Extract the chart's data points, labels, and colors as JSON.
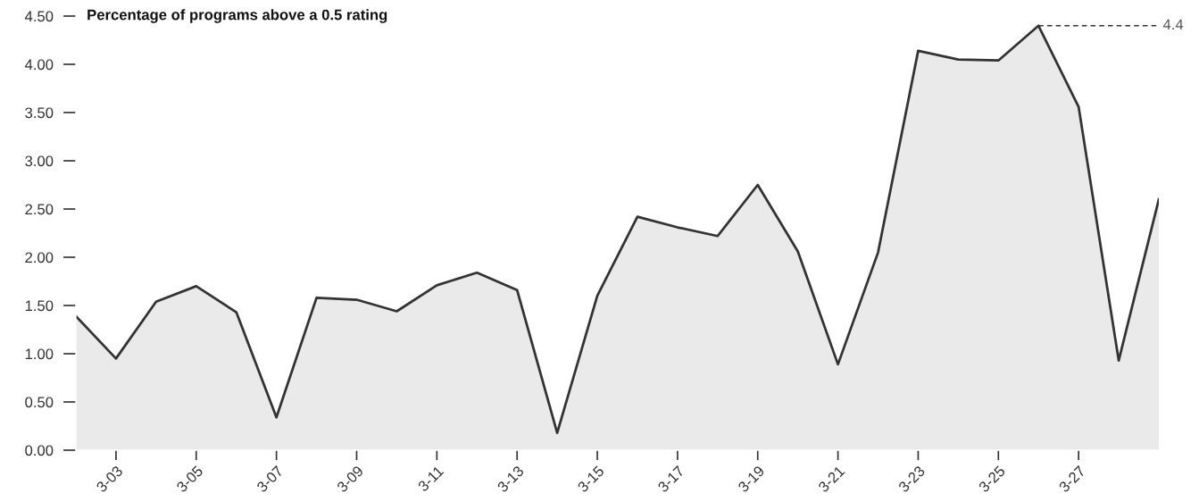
{
  "chart_data": {
    "type": "area",
    "title": "Percentage of programs above a 0.5 rating",
    "categories": [
      null,
      "3-03",
      null,
      "3-05",
      null,
      "3-07",
      null,
      "3-09",
      null,
      "3-11",
      null,
      "3-13",
      null,
      "3-15",
      null,
      "3-17",
      null,
      "3-19",
      null,
      "3-21",
      null,
      "3-23",
      null,
      "3-25",
      null,
      "3-27",
      null,
      null
    ],
    "series": [
      {
        "color": "#333333",
        "values": [
          1.39,
          0.95,
          1.54,
          1.7,
          1.43,
          0.34,
          1.58,
          1.56,
          1.44,
          1.71,
          1.84,
          1.66,
          0.18,
          1.6,
          2.42,
          2.31,
          2.22,
          2.75,
          2.06,
          0.89,
          2.05,
          4.14,
          4.05,
          4.04,
          4.4,
          3.56,
          0.93,
          2.6
        ]
      }
    ],
    "ylim": [
      0,
      4.5
    ],
    "yticks": [
      {
        "value": 0,
        "label": "0.00"
      },
      {
        "value": 0.5,
        "label": "0.50"
      },
      {
        "value": 1,
        "label": "1.00"
      },
      {
        "value": 1.5,
        "label": "1.50"
      },
      {
        "value": 2,
        "label": "2.00"
      },
      {
        "value": 2.5,
        "label": "2.50"
      },
      {
        "value": 3,
        "label": "3.00"
      },
      {
        "value": 3.5,
        "label": "3.50"
      },
      {
        "value": 4,
        "label": "4.00"
      },
      {
        "value": 4.5,
        "label": "4.50"
      }
    ],
    "ref_lines": [
      {
        "axis": "y",
        "value": 4.4,
        "label": "4.4",
        "line_style": "dashed"
      }
    ],
    "grid": false,
    "legend": false
  }
}
